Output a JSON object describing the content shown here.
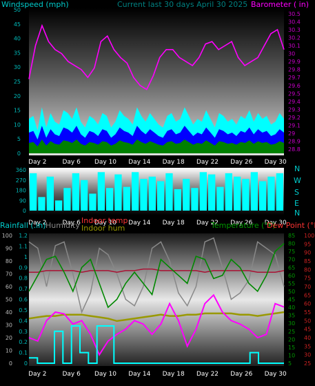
{
  "colors": {
    "wind": "#00ffff",
    "wind_avg": "#0000ff",
    "wind_gust_fill": "#008000",
    "baro": "#ff00ff",
    "direction": "#00ffff",
    "rain": "#00ffff",
    "humidity": "#888888",
    "indoor_temp": "#aa1133",
    "indoor_hum": "#999900",
    "temperature": "#008800",
    "dewpoint": "#ff00ff",
    "axis_left_dark": "#006666",
    "axis_right_pink": "#cc00cc",
    "label_red": "#ff3333",
    "label_green": "#009900",
    "label_olive": "#999900"
  },
  "chart_data": [
    {
      "type": "line",
      "title": "Current last 30 days April 30 2025",
      "series": [
        {
          "name": "Windspeed (mph)",
          "axis": "left",
          "values": [
            12,
            13,
            8,
            16,
            9,
            14,
            11,
            10,
            15,
            14,
            12,
            16,
            11,
            9,
            13,
            12,
            10,
            14,
            13,
            9,
            11,
            15,
            13,
            12,
            10,
            16,
            13,
            11,
            14,
            12,
            10,
            9,
            13,
            14,
            11,
            12,
            16,
            13,
            10,
            12,
            11,
            15,
            12,
            9,
            14,
            13,
            11,
            12,
            10,
            13,
            12,
            15,
            11,
            14,
            12,
            13,
            10,
            11,
            14,
            12
          ]
        },
        {
          "name": "Barometer ( in)",
          "axis": "right",
          "values": [
            29.68,
            30.1,
            30.35,
            30.15,
            30.05,
            30.0,
            29.9,
            29.85,
            29.8,
            29.7,
            29.82,
            30.15,
            30.22,
            30.05,
            29.95,
            29.88,
            29.7,
            29.6,
            29.55,
            29.72,
            29.95,
            30.05,
            30.05,
            29.95,
            29.9,
            29.85,
            29.95,
            30.12,
            30.15,
            30.05,
            30.1,
            30.15,
            29.95,
            29.85,
            29.9,
            29.95,
            30.1,
            30.25,
            30.3,
            30.05
          ]
        }
      ],
      "left_ticks": [
        0,
        5,
        10,
        15,
        20,
        25,
        30,
        35,
        40,
        45,
        50
      ],
      "ylim_left": [
        0,
        50
      ],
      "right_ticks": [
        28.8,
        28.9,
        29.0,
        29.1,
        29.2,
        29.3,
        29.4,
        29.5,
        29.6,
        29.7,
        29.8,
        29.9,
        30.0,
        30.1,
        30.2,
        30.3,
        30.4,
        30.5
      ],
      "ylim_right": [
        28.75,
        30.55
      ],
      "ylabel_left": "Windspeed (mph)",
      "ylabel_right": "Barometer ( in)",
      "x_ticks": [
        "Day 2",
        "Day 6",
        "Day 10",
        "Day 14",
        "Day 18",
        "Day 22",
        "Day 26",
        "Day 30"
      ]
    },
    {
      "type": "bar",
      "series": [
        {
          "name": "Wind direction",
          "values": [
            330,
            120,
            300,
            90,
            200,
            330,
            270,
            150,
            340,
            200,
            320,
            210,
            340,
            280,
            300,
            260,
            330,
            190,
            280,
            200,
            340,
            320,
            210,
            330,
            300,
            280,
            340,
            260,
            300,
            330
          ]
        }
      ],
      "left_ticks": [
        0,
        90,
        180,
        270,
        360
      ],
      "ylim": [
        0,
        360
      ],
      "compass": [
        "N",
        "W",
        "S",
        "E",
        "N"
      ],
      "x_ticks": [
        "Day 2",
        "Day 6",
        "Day 10",
        "Day 14",
        "Day 18",
        "Day 22",
        "Day 26",
        "Day 30"
      ]
    },
    {
      "type": "line",
      "labels": {
        "rainfall": "Rainfall (.in)",
        "humidity": "Humidity",
        "indoor_temp": "Indoor temp",
        "indoor_hum": "Indoor hum",
        "temperature": "Temperature (°F)",
        "dewpoint": "Dew Point (°F)"
      },
      "series": [
        {
          "name": "Humidity",
          "values": [
            95,
            90,
            60,
            92,
            95,
            70,
            40,
            55,
            90,
            85,
            70,
            50,
            45,
            60,
            90,
            95,
            80,
            55,
            45,
            60,
            95,
            98,
            75,
            50,
            55,
            65,
            95,
            90,
            85,
            60
          ]
        },
        {
          "name": "Indoor temp",
          "values": [
            62,
            62,
            63,
            63,
            63,
            63,
            62,
            63,
            63,
            63,
            62,
            63,
            63,
            64,
            64,
            63,
            63,
            63,
            63,
            63,
            62,
            63,
            63,
            63,
            63,
            63,
            62,
            62,
            62,
            63
          ]
        },
        {
          "name": "Indoor hum",
          "values": [
            35,
            36,
            37,
            37,
            38,
            38,
            38,
            37,
            36,
            35,
            33,
            34,
            35,
            36,
            37,
            38,
            37,
            37,
            38,
            38,
            39,
            39,
            39,
            39,
            38,
            38,
            37,
            38,
            39,
            40
          ]
        },
        {
          "name": "Temperature (°F)",
          "values": [
            50,
            60,
            70,
            72,
            62,
            50,
            65,
            70,
            55,
            40,
            45,
            55,
            62,
            55,
            48,
            70,
            65,
            60,
            55,
            72,
            70,
            58,
            60,
            70,
            65,
            55,
            50,
            60,
            75,
            80
          ]
        },
        {
          "name": "Dew Point (°F)",
          "values": [
            40,
            38,
            50,
            55,
            54,
            48,
            50,
            42,
            30,
            38,
            42,
            45,
            50,
            48,
            42,
            48,
            60,
            50,
            35,
            45,
            60,
            65,
            55,
            50,
            48,
            45,
            40,
            42,
            60,
            58
          ]
        },
        {
          "name": "Rainfall (.in)",
          "values": [
            0.05,
            0.0,
            0.0,
            0.3,
            0.0,
            0.35,
            0.1,
            0.0,
            0.35,
            0.35,
            0.0,
            0.0,
            0.0,
            0.0,
            0.0,
            0.0,
            0.0,
            0.0,
            0.0,
            0.0,
            0.0,
            0.0,
            0.0,
            0.0,
            0.0,
            0.0,
            0.1,
            0.0,
            0.0,
            0.0
          ]
        }
      ],
      "left_ticks_pct": [
        0,
        10,
        20,
        30,
        40,
        50,
        60,
        70,
        80,
        90,
        100
      ],
      "ylim_pct": [
        0,
        100
      ],
      "left_ticks_rain": [
        0,
        0.1,
        0.2,
        0.3,
        0.4,
        0.5,
        0.6,
        0.7,
        0.8,
        0.9,
        1,
        1.1,
        1.2
      ],
      "ylim_rain": [
        0,
        1.2
      ],
      "temp_ticks": [
        5,
        10,
        15,
        20,
        25,
        30,
        35,
        40,
        45,
        50,
        55,
        60,
        65,
        70,
        75,
        80,
        85
      ],
      "ylim_temp": [
        5,
        85
      ],
      "dew_ticks": [
        25,
        30,
        35,
        40,
        45,
        50,
        55,
        60,
        65,
        70,
        75,
        80,
        85,
        90,
        95,
        100
      ],
      "ylim_dew": [
        25,
        100
      ],
      "x_ticks": [
        "Day 2",
        "Day 6",
        "Day 10",
        "Day 14",
        "Day 18",
        "Day 22",
        "Day 26",
        "Day 30"
      ]
    }
  ]
}
